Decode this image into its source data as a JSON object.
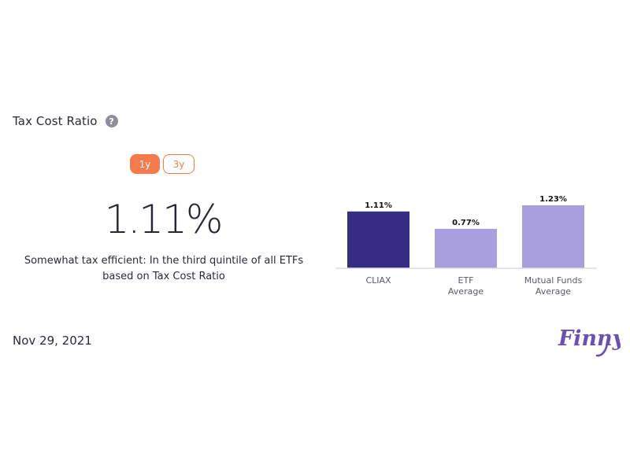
{
  "header": {
    "title": "Tax Cost Ratio",
    "help_icon": "question-circle-icon",
    "help_glyph": "?"
  },
  "toggle": {
    "options": [
      "1y",
      "3y"
    ],
    "selected": "1y"
  },
  "summary": {
    "value": "1.11%",
    "description": "Somewhat tax efficient: In the third quintile of all ETFs based on Tax Cost Ratio"
  },
  "footer": {
    "date": "Nov 29, 2021",
    "brand": "Finny"
  },
  "colors": {
    "accent": "#f57a4c",
    "primary_bar": "#372c84",
    "secondary_bar": "#a99fdf",
    "brand": "#6a4fb6"
  },
  "chart_data": {
    "type": "bar",
    "categories": [
      [
        "CLIAX"
      ],
      [
        "ETF",
        "Average"
      ],
      [
        "Mutual Funds",
        "Average"
      ]
    ],
    "values": [
      1.11,
      0.77,
      1.23
    ],
    "value_labels": [
      "1.11%",
      "0.77%",
      "1.23%"
    ],
    "bar_colors": [
      "#372c84",
      "#a99fdf",
      "#a99fdf"
    ],
    "ylim": [
      0,
      1.23
    ],
    "grid": false,
    "legend": "none"
  }
}
